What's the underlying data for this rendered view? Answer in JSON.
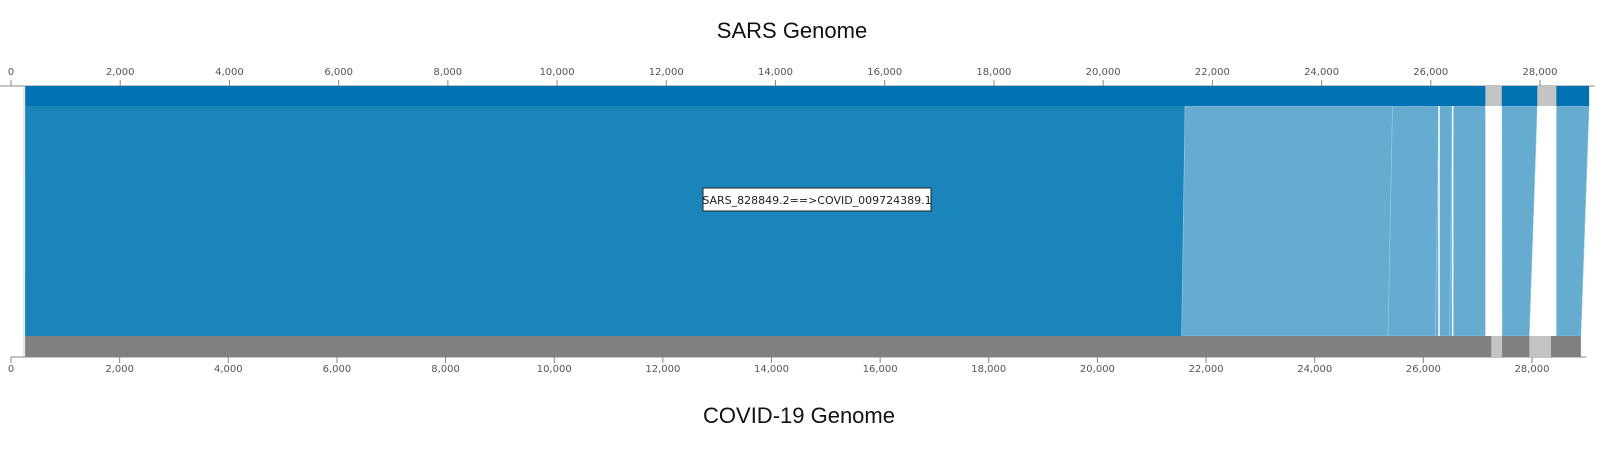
{
  "titles": {
    "top": "SARS Genome",
    "bottom": "COVID-19 Genome"
  },
  "colors": {
    "top_bar": "#0072b2",
    "bottom_bar": "#808080",
    "primary_link": "#1a85ba",
    "secondary_link": "#65acd0",
    "gap_block": "#c4c4c4",
    "axis": "#888888"
  },
  "chart_data": {
    "type": "synteny",
    "top_genome": {
      "name": "SARS Genome",
      "range": [
        0,
        29000
      ],
      "ticks": [
        0,
        2000,
        4000,
        6000,
        8000,
        10000,
        12000,
        14000,
        16000,
        18000,
        20000,
        22000,
        24000,
        26000,
        28000
      ],
      "tick_labels": [
        "0",
        "2,000",
        "4,000",
        "6,000",
        "8,000",
        "10,000",
        "12,000",
        "14,000",
        "16,000",
        "18,000",
        "20,000",
        "22,000",
        "24,000",
        "26,000",
        "28,000"
      ]
    },
    "bottom_genome": {
      "name": "COVID-19 Genome",
      "range": [
        0,
        29000
      ],
      "ticks": [
        0,
        2000,
        4000,
        6000,
        8000,
        10000,
        12000,
        14000,
        16000,
        18000,
        20000,
        22000,
        24000,
        26000,
        28000
      ],
      "tick_labels": [
        "0",
        "2,000",
        "4,000",
        "6,000",
        "8,000",
        "10,000",
        "12,000",
        "14,000",
        "16,000",
        "18,000",
        "20,000",
        "22,000",
        "24,000",
        "26,000",
        "28,000"
      ]
    },
    "top_bar_segments": [
      {
        "start": 260,
        "end": 28900
      },
      {
        "start": 27000,
        "end": 27300,
        "gap": true
      },
      {
        "start": 27950,
        "end": 28300,
        "gap": true
      }
    ],
    "bottom_bar_segments": [
      {
        "start": 260,
        "end": 28900
      },
      {
        "start": 27250,
        "end": 27450,
        "gap": true
      },
      {
        "start": 27950,
        "end": 28350,
        "gap": true
      }
    ],
    "links": [
      {
        "top": [
          260,
          21500
        ],
        "bottom": [
          260,
          21550
        ],
        "style": "primary"
      },
      {
        "top": [
          21500,
          25300
        ],
        "bottom": [
          21550,
          25350
        ],
        "style": "secondary"
      },
      {
        "top": [
          25300,
          26150
        ],
        "bottom": [
          25350,
          26220
        ],
        "style": "secondary"
      },
      {
        "top": [
          26150,
          26400
        ],
        "bottom": [
          26220,
          26480
        ],
        "style": "secondary"
      },
      {
        "top": [
          26400,
          27000
        ],
        "bottom": [
          26480,
          27250
        ],
        "style": "secondary"
      },
      {
        "top": [
          27300,
          27950
        ],
        "bottom": [
          27450,
          27950
        ],
        "style": "secondary"
      },
      {
        "top": [
          28300,
          28900
        ],
        "bottom": [
          28350,
          28900
        ],
        "style": "secondary"
      }
    ],
    "tooltip": "SARS_828849.2==>COVID_009724389.1"
  }
}
